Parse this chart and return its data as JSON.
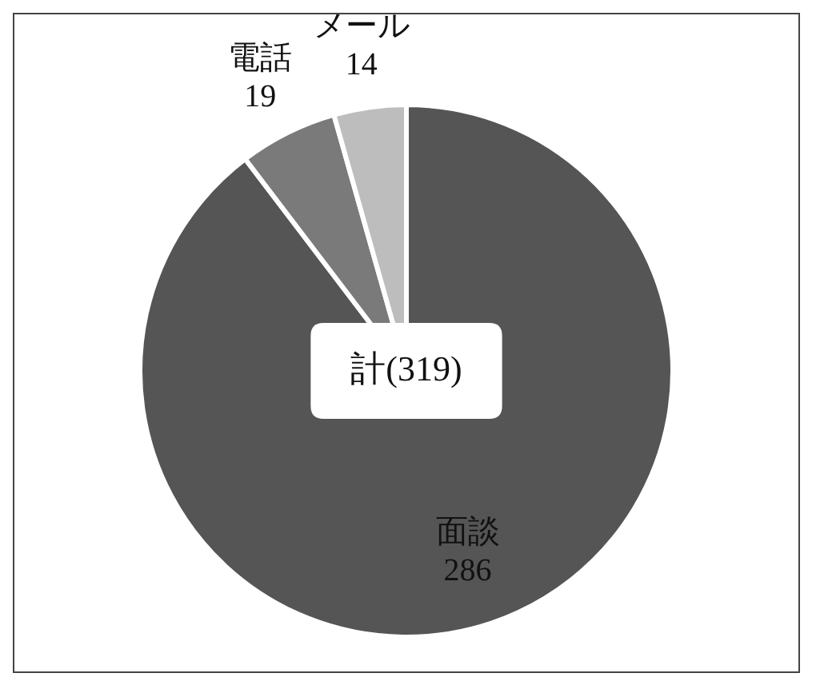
{
  "chart_data": {
    "type": "pie",
    "categories": [
      "面談",
      "電話",
      "メール"
    ],
    "values": [
      286,
      19,
      14
    ],
    "colors": [
      "#555555",
      "#7a7a7a",
      "#bdbdbd"
    ],
    "data_labels": true,
    "annotations": [
      "計(319)"
    ]
  }
}
